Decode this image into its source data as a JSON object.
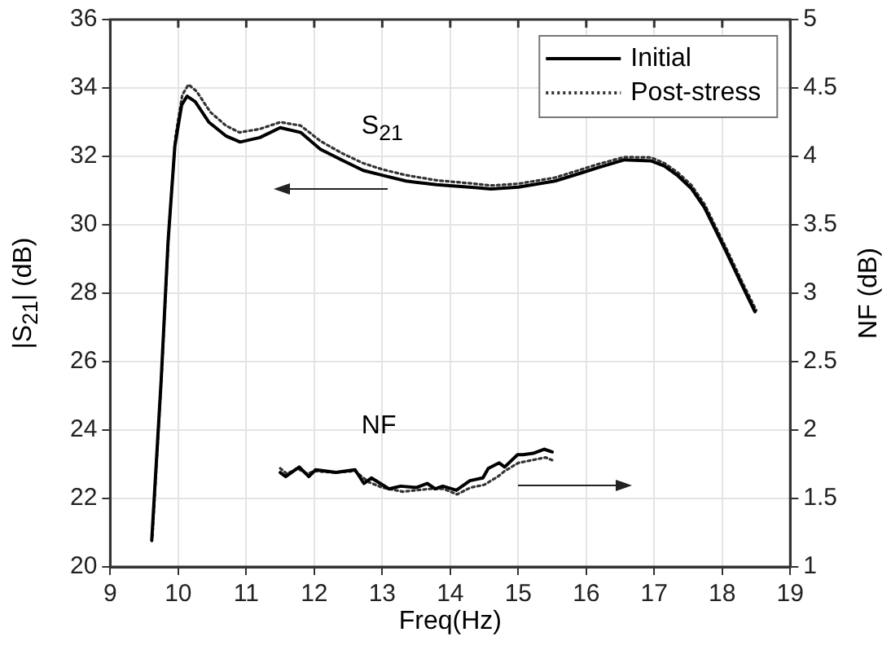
{
  "chart_data": {
    "type": "line",
    "xlabel": "Freq(Hz)",
    "ylabel": "|S$_{21}$| (dB)",
    "y2label": "NF (dB)",
    "xlim": [
      9,
      19
    ],
    "xticks": [
      9,
      10,
      11,
      12,
      13,
      14,
      15,
      16,
      17,
      18,
      19
    ],
    "ylim": [
      20,
      36
    ],
    "yticks": [
      20,
      22,
      24,
      26,
      28,
      30,
      32,
      34,
      36
    ],
    "y2lim": [
      1,
      5
    ],
    "y2ticks": [
      1,
      1.5,
      2,
      2.5,
      3,
      3.5,
      4,
      4.5,
      5
    ],
    "grid": true,
    "legend": "top right",
    "marker": "none",
    "annotations": [
      "S$_{21}$",
      "NF"
    ],
    "series": [
      {
        "name": "Initial",
        "color": "#000000",
        "line_style": "solid",
        "x": [
          9.61,
          9.75,
          9.85,
          9.95,
          10.05,
          10.13,
          10.25,
          10.45,
          10.7,
          10.91,
          11.2,
          11.5,
          11.8,
          12.09,
          12.4,
          12.72,
          13.0,
          13.35,
          13.8,
          14.36,
          14.6,
          15.0,
          15.54,
          15.9,
          16.17,
          16.56,
          16.95,
          17.15,
          17.35,
          17.55,
          17.74,
          18.05,
          18.3,
          18.48
        ],
        "values": [
          20.77,
          25.5,
          29.5,
          32.3,
          33.5,
          33.76,
          33.6,
          33.0,
          32.6,
          32.42,
          32.55,
          32.84,
          32.7,
          32.21,
          31.9,
          31.59,
          31.45,
          31.28,
          31.17,
          31.09,
          31.05,
          31.1,
          31.28,
          31.5,
          31.67,
          31.9,
          31.87,
          31.72,
          31.43,
          31.05,
          30.5,
          29.25,
          28.2,
          27.46
        ]
      },
      {
        "name": "Post-stress",
        "color": "#333333",
        "line_style": "dotted",
        "x": [
          9.62,
          9.76,
          9.86,
          9.96,
          10.06,
          10.15,
          10.27,
          10.47,
          10.7,
          10.9,
          11.2,
          11.5,
          11.8,
          12.09,
          12.4,
          12.72,
          13.0,
          13.35,
          13.8,
          14.36,
          14.6,
          15.0,
          15.54,
          15.9,
          16.17,
          16.56,
          16.95,
          17.15,
          17.35,
          17.55,
          17.74,
          18.05,
          18.3,
          18.5
        ],
        "values": [
          20.9,
          25.8,
          29.8,
          32.6,
          33.8,
          34.1,
          33.9,
          33.3,
          32.9,
          32.7,
          32.8,
          33.0,
          32.9,
          32.45,
          32.1,
          31.8,
          31.62,
          31.45,
          31.3,
          31.2,
          31.15,
          31.2,
          31.38,
          31.6,
          31.77,
          31.98,
          31.97,
          31.8,
          31.52,
          31.15,
          30.6,
          29.35,
          28.3,
          27.5
        ]
      },
      {
        "color": "#000000",
        "line_style": "solid",
        "axis": "y2",
        "x": [
          11.5,
          11.58,
          11.78,
          11.92,
          12.02,
          12.32,
          12.6,
          12.73,
          12.84,
          13.1,
          13.27,
          13.5,
          13.66,
          13.78,
          13.89,
          14.09,
          14.29,
          14.48,
          14.56,
          14.72,
          14.8,
          14.99,
          15.07,
          15.22,
          15.38,
          15.5
        ],
        "values": [
          1.69,
          1.66,
          1.73,
          1.66,
          1.71,
          1.69,
          1.71,
          1.61,
          1.65,
          1.57,
          1.59,
          1.58,
          1.61,
          1.57,
          1.59,
          1.56,
          1.63,
          1.65,
          1.72,
          1.76,
          1.73,
          1.82,
          1.82,
          1.83,
          1.86,
          1.84
        ]
      },
      {
        "color": "#333333",
        "line_style": "dotted",
        "axis": "y2",
        "x": [
          11.5,
          11.6,
          11.75,
          11.9,
          12.0,
          12.3,
          12.6,
          12.8,
          13.0,
          13.3,
          13.5,
          13.7,
          13.9,
          14.1,
          14.3,
          14.5,
          14.7,
          14.8,
          15.0,
          15.2,
          15.4,
          15.5
        ],
        "values": [
          1.72,
          1.68,
          1.72,
          1.68,
          1.7,
          1.69,
          1.7,
          1.62,
          1.58,
          1.55,
          1.56,
          1.57,
          1.57,
          1.53,
          1.58,
          1.6,
          1.66,
          1.7,
          1.76,
          1.78,
          1.8,
          1.78
        ]
      }
    ]
  }
}
